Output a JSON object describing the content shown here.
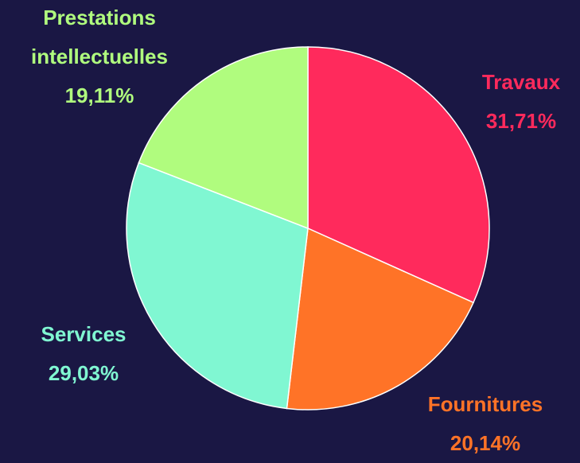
{
  "chart_data": {
    "type": "pie",
    "categories": [
      "Travaux",
      "Fournitures",
      "Services",
      "Prestations intellectuelles"
    ],
    "values": [
      31.71,
      20.14,
      29.03,
      19.11
    ],
    "value_labels": [
      "31,71%",
      "20,14%",
      "29,03%",
      "19,11%"
    ],
    "colors": [
      "#ff2a5c",
      "#ff7327",
      "#80f7d2",
      "#b0fc7e"
    ]
  }
}
